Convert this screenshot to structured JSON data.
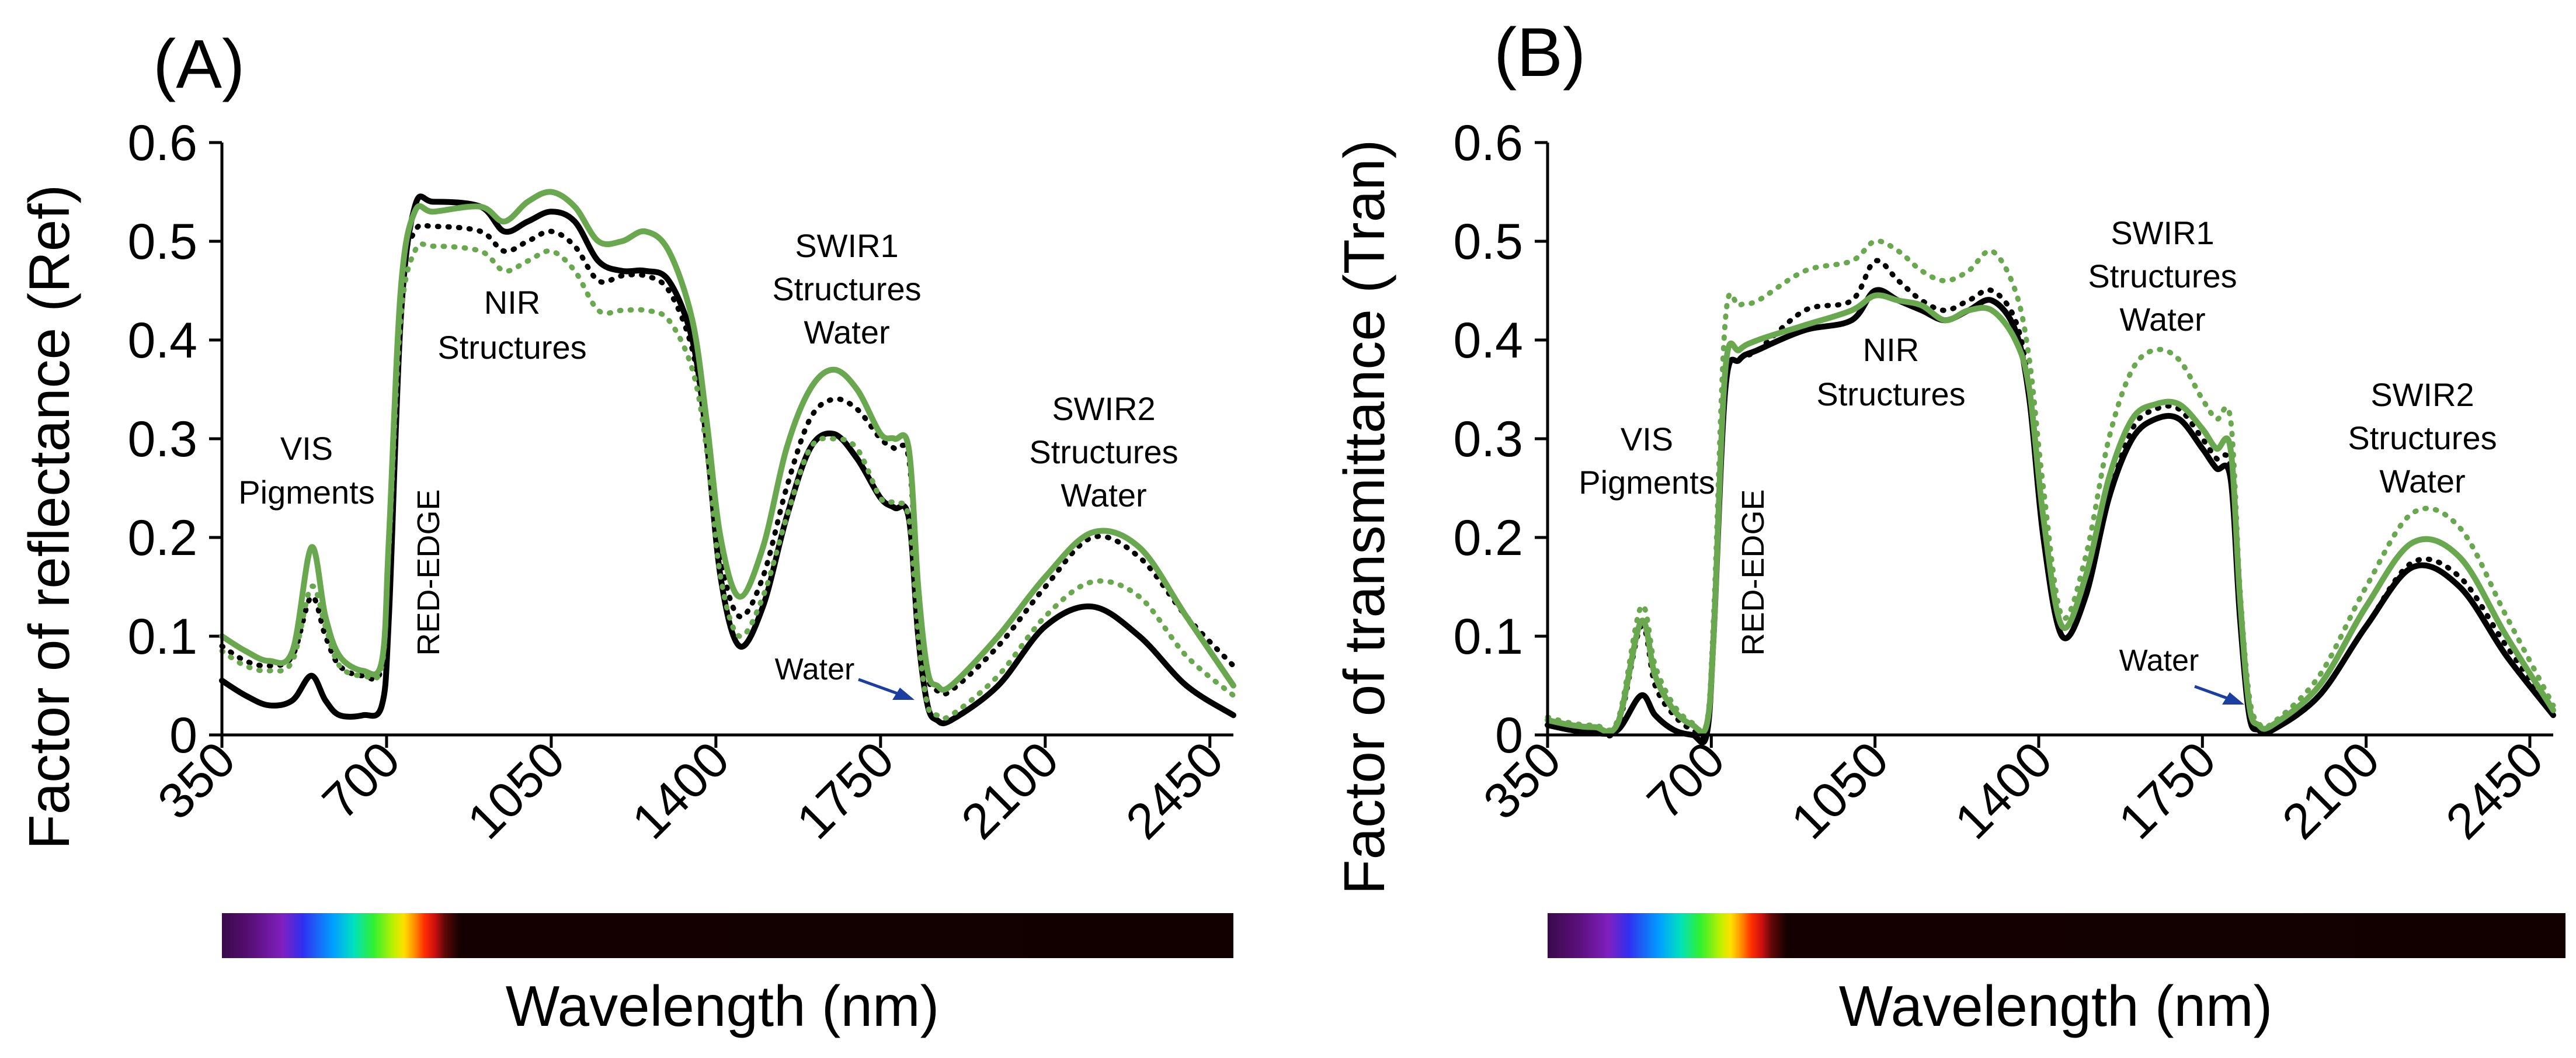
{
  "chart_data": [
    {
      "panel": "(A)",
      "type": "line",
      "ylabel": "Factor of reflectance (Ref)",
      "xlabel": "Wavelength (nm)",
      "xlim": [
        350,
        2500
      ],
      "ylim": [
        0,
        0.6
      ],
      "xticks": [
        "350",
        "700",
        "1050",
        "1400",
        "1750",
        "2100",
        "2450"
      ],
      "yticks": [
        "0",
        "0.1",
        "0.2",
        "0.3",
        "0.4",
        "0.5",
        "0.6"
      ],
      "annotations": {
        "vis": [
          "VIS",
          "Pigments"
        ],
        "rededge": "RED-EDGE",
        "nir": [
          "NIR",
          "Structures"
        ],
        "swir1": [
          "SWIR1",
          "Structures",
          "Water"
        ],
        "swir2": [
          "SWIR2",
          "Structures",
          "Water"
        ],
        "water": "Water"
      },
      "series": [
        {
          "name": "black solid",
          "color": "#000000",
          "dash": false,
          "x": [
            350,
            400,
            450,
            500,
            540,
            570,
            600,
            650,
            690,
            705,
            730,
            760,
            800,
            900,
            950,
            1000,
            1050,
            1100,
            1150,
            1200,
            1250,
            1300,
            1350,
            1380,
            1410,
            1450,
            1500,
            1550,
            1600,
            1650,
            1700,
            1750,
            1780,
            1810,
            1830,
            1850,
            1870,
            1900,
            2000,
            2100,
            2200,
            2300,
            2400,
            2500
          ],
          "y": [
            0.055,
            0.04,
            0.03,
            0.035,
            0.06,
            0.035,
            0.02,
            0.02,
            0.03,
            0.12,
            0.42,
            0.535,
            0.54,
            0.535,
            0.51,
            0.52,
            0.53,
            0.52,
            0.48,
            0.47,
            0.47,
            0.46,
            0.4,
            0.3,
            0.16,
            0.09,
            0.13,
            0.22,
            0.29,
            0.305,
            0.28,
            0.24,
            0.23,
            0.22,
            0.1,
            0.03,
            0.015,
            0.015,
            0.05,
            0.11,
            0.13,
            0.1,
            0.05,
            0.02
          ]
        },
        {
          "name": "black dotted",
          "color": "#000000",
          "dash": true,
          "x": [
            350,
            400,
            450,
            500,
            540,
            570,
            600,
            650,
            690,
            705,
            730,
            760,
            800,
            900,
            950,
            1000,
            1050,
            1100,
            1150,
            1200,
            1250,
            1300,
            1350,
            1380,
            1410,
            1450,
            1500,
            1550,
            1600,
            1650,
            1700,
            1750,
            1780,
            1810,
            1830,
            1850,
            1870,
            1900,
            2000,
            2100,
            2200,
            2300,
            2400,
            2500
          ],
          "y": [
            0.09,
            0.075,
            0.07,
            0.08,
            0.14,
            0.1,
            0.07,
            0.06,
            0.07,
            0.2,
            0.45,
            0.51,
            0.515,
            0.51,
            0.49,
            0.5,
            0.51,
            0.495,
            0.46,
            0.465,
            0.465,
            0.45,
            0.39,
            0.3,
            0.18,
            0.12,
            0.16,
            0.25,
            0.32,
            0.34,
            0.33,
            0.3,
            0.29,
            0.28,
            0.14,
            0.06,
            0.045,
            0.045,
            0.09,
            0.15,
            0.2,
            0.18,
            0.12,
            0.07
          ]
        },
        {
          "name": "green solid",
          "color": "#6aa84f",
          "dash": false,
          "x": [
            350,
            400,
            450,
            500,
            540,
            570,
            600,
            650,
            690,
            705,
            730,
            760,
            800,
            900,
            950,
            1000,
            1050,
            1100,
            1150,
            1200,
            1250,
            1300,
            1350,
            1380,
            1410,
            1450,
            1500,
            1550,
            1600,
            1650,
            1700,
            1750,
            1780,
            1810,
            1830,
            1850,
            1870,
            1900,
            2000,
            2100,
            2200,
            2300,
            2400,
            2500
          ],
          "y": [
            0.1,
            0.085,
            0.075,
            0.085,
            0.19,
            0.12,
            0.08,
            0.065,
            0.075,
            0.2,
            0.45,
            0.53,
            0.53,
            0.535,
            0.52,
            0.54,
            0.55,
            0.535,
            0.5,
            0.5,
            0.51,
            0.49,
            0.42,
            0.32,
            0.2,
            0.14,
            0.19,
            0.29,
            0.35,
            0.37,
            0.35,
            0.305,
            0.3,
            0.29,
            0.15,
            0.065,
            0.05,
            0.05,
            0.1,
            0.16,
            0.205,
            0.19,
            0.12,
            0.05
          ]
        },
        {
          "name": "green dotted",
          "color": "#6aa84f",
          "dash": true,
          "x": [
            350,
            400,
            450,
            500,
            540,
            570,
            600,
            650,
            690,
            705,
            730,
            760,
            800,
            900,
            950,
            1000,
            1050,
            1100,
            1150,
            1200,
            1250,
            1300,
            1350,
            1380,
            1410,
            1450,
            1500,
            1550,
            1600,
            1650,
            1700,
            1750,
            1780,
            1810,
            1830,
            1850,
            1870,
            1900,
            2000,
            2100,
            2200,
            2300,
            2400,
            2500
          ],
          "y": [
            0.085,
            0.07,
            0.065,
            0.075,
            0.15,
            0.11,
            0.07,
            0.06,
            0.07,
            0.19,
            0.42,
            0.49,
            0.495,
            0.49,
            0.47,
            0.48,
            0.49,
            0.47,
            0.43,
            0.43,
            0.43,
            0.42,
            0.37,
            0.29,
            0.16,
            0.1,
            0.14,
            0.22,
            0.29,
            0.3,
            0.29,
            0.24,
            0.235,
            0.22,
            0.1,
            0.03,
            0.02,
            0.02,
            0.06,
            0.12,
            0.155,
            0.14,
            0.08,
            0.04
          ]
        }
      ]
    },
    {
      "panel": "(B)",
      "type": "line",
      "ylabel": "Factor of transmittance (Tran)",
      "xlabel": "Wavelength (nm)",
      "xlim": [
        350,
        2500
      ],
      "ylim": [
        0,
        0.6
      ],
      "xticks": [
        "350",
        "700",
        "1050",
        "1400",
        "1750",
        "2100",
        "2450"
      ],
      "yticks": [
        "0",
        "0.1",
        "0.2",
        "0.3",
        "0.4",
        "0.5",
        "0.6"
      ],
      "annotations": {
        "vis": [
          "VIS",
          "Pigments"
        ],
        "rededge": "RED-EDGE",
        "nir": [
          "NIR",
          "Structures"
        ],
        "swir1": [
          "SWIR1",
          "Structures",
          "Water"
        ],
        "swir2": [
          "SWIR2",
          "Structures",
          "Water"
        ],
        "water": "Water"
      },
      "series": [
        {
          "name": "black solid",
          "color": "#000000",
          "dash": false,
          "x": [
            350,
            400,
            450,
            500,
            550,
            580,
            620,
            660,
            690,
            705,
            730,
            760,
            800,
            900,
            1000,
            1050,
            1100,
            1150,
            1200,
            1250,
            1300,
            1350,
            1380,
            1410,
            1450,
            1500,
            1550,
            1600,
            1650,
            1700,
            1750,
            1780,
            1810,
            1830,
            1850,
            1870,
            1900,
            2000,
            2100,
            2200,
            2300,
            2400,
            2500
          ],
          "y": [
            0.01,
            0.005,
            0.002,
            0.005,
            0.04,
            0.02,
            0.005,
            0.0,
            0.0,
            0.1,
            0.35,
            0.38,
            0.39,
            0.41,
            0.42,
            0.45,
            0.44,
            0.43,
            0.42,
            0.43,
            0.44,
            0.41,
            0.34,
            0.2,
            0.1,
            0.14,
            0.24,
            0.3,
            0.32,
            0.32,
            0.29,
            0.27,
            0.26,
            0.12,
            0.02,
            0.005,
            0.005,
            0.04,
            0.11,
            0.17,
            0.15,
            0.08,
            0.02
          ]
        },
        {
          "name": "black dotted",
          "color": "#000000",
          "dash": true,
          "x": [
            350,
            400,
            450,
            500,
            550,
            580,
            620,
            660,
            690,
            705,
            730,
            760,
            800,
            900,
            1000,
            1050,
            1100,
            1150,
            1200,
            1250,
            1300,
            1350,
            1380,
            1410,
            1450,
            1500,
            1550,
            1600,
            1650,
            1700,
            1750,
            1780,
            1810,
            1830,
            1850,
            1870,
            1900,
            2000,
            2100,
            2200,
            2300,
            2400,
            2500
          ],
          "y": [
            0.01,
            0.006,
            0.004,
            0.008,
            0.11,
            0.05,
            0.02,
            0.005,
            0.005,
            0.1,
            0.35,
            0.38,
            0.39,
            0.43,
            0.44,
            0.48,
            0.46,
            0.44,
            0.43,
            0.44,
            0.45,
            0.42,
            0.35,
            0.2,
            0.1,
            0.14,
            0.24,
            0.31,
            0.33,
            0.33,
            0.3,
            0.28,
            0.27,
            0.12,
            0.02,
            0.005,
            0.005,
            0.04,
            0.11,
            0.175,
            0.16,
            0.09,
            0.025
          ]
        },
        {
          "name": "green solid",
          "color": "#6aa84f",
          "dash": false,
          "x": [
            350,
            400,
            450,
            500,
            550,
            580,
            620,
            660,
            690,
            705,
            730,
            760,
            800,
            900,
            1000,
            1050,
            1100,
            1150,
            1200,
            1250,
            1300,
            1350,
            1380,
            1410,
            1450,
            1500,
            1550,
            1600,
            1650,
            1700,
            1750,
            1780,
            1810,
            1830,
            1850,
            1870,
            1900,
            2000,
            2100,
            2200,
            2300,
            2400,
            2500
          ],
          "y": [
            0.015,
            0.01,
            0.008,
            0.012,
            0.115,
            0.06,
            0.025,
            0.01,
            0.01,
            0.1,
            0.37,
            0.39,
            0.4,
            0.415,
            0.43,
            0.445,
            0.44,
            0.435,
            0.42,
            0.43,
            0.43,
            0.4,
            0.35,
            0.22,
            0.11,
            0.16,
            0.26,
            0.32,
            0.335,
            0.335,
            0.31,
            0.29,
            0.29,
            0.14,
            0.03,
            0.01,
            0.01,
            0.05,
            0.13,
            0.195,
            0.18,
            0.1,
            0.025
          ]
        },
        {
          "name": "green dotted",
          "color": "#6aa84f",
          "dash": true,
          "x": [
            350,
            400,
            450,
            500,
            550,
            580,
            620,
            660,
            690,
            705,
            730,
            760,
            800,
            900,
            1000,
            1050,
            1100,
            1150,
            1200,
            1250,
            1300,
            1350,
            1380,
            1410,
            1450,
            1500,
            1550,
            1600,
            1650,
            1700,
            1750,
            1780,
            1810,
            1830,
            1850,
            1870,
            1900,
            2000,
            2100,
            2200,
            2300,
            2400,
            2500
          ],
          "y": [
            0.018,
            0.012,
            0.01,
            0.015,
            0.13,
            0.07,
            0.03,
            0.012,
            0.012,
            0.12,
            0.42,
            0.435,
            0.44,
            0.47,
            0.48,
            0.5,
            0.49,
            0.47,
            0.46,
            0.47,
            0.49,
            0.45,
            0.38,
            0.25,
            0.12,
            0.18,
            0.3,
            0.37,
            0.39,
            0.38,
            0.34,
            0.32,
            0.32,
            0.15,
            0.04,
            0.012,
            0.012,
            0.06,
            0.15,
            0.225,
            0.21,
            0.12,
            0.03
          ]
        }
      ]
    }
  ]
}
